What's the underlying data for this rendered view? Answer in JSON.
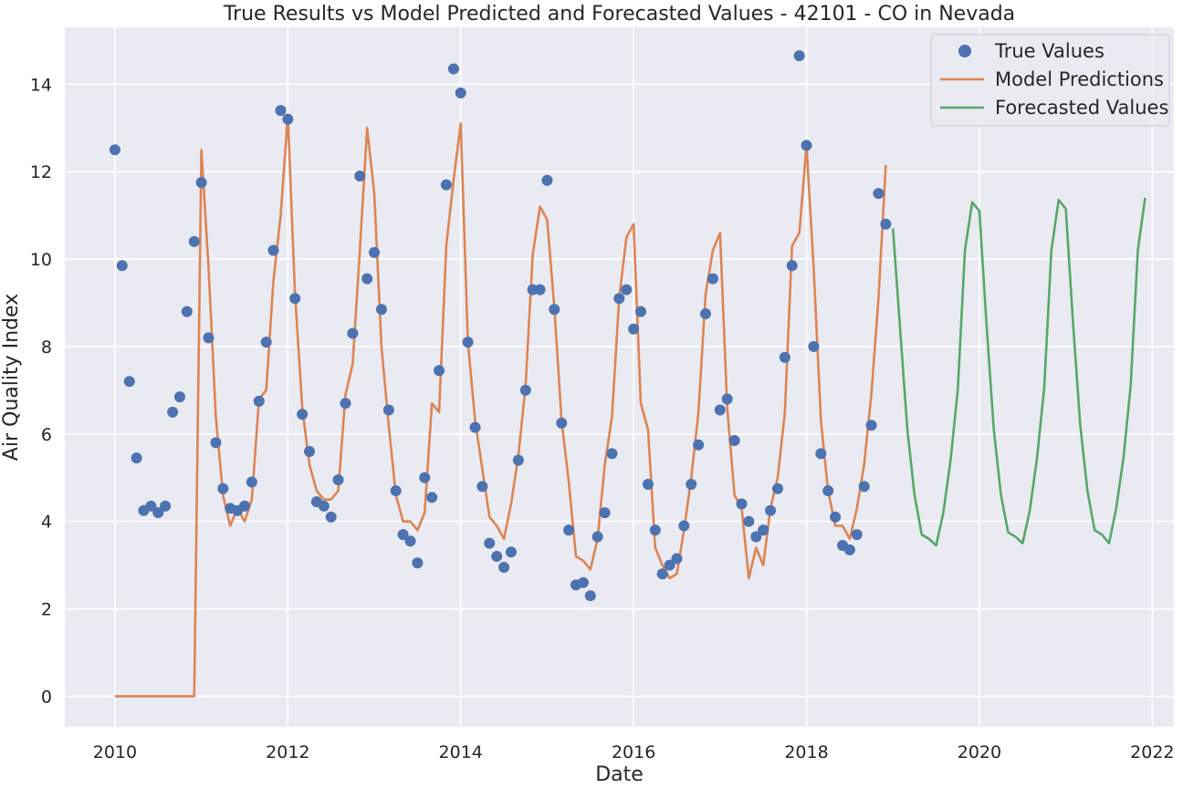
{
  "chart_data": {
    "type": "line",
    "title": "True Results vs Model Predicted and Forecasted Values - 42101 - CO in Nevada",
    "xlabel": "Date",
    "ylabel": "Air Quality Index",
    "xlim": [
      2009.42,
      2022.25
    ],
    "ylim": [
      -0.7,
      15.3
    ],
    "x_ticks": [
      2010,
      2012,
      2014,
      2016,
      2018,
      2020,
      2022
    ],
    "y_ticks": [
      0,
      2,
      4,
      6,
      8,
      10,
      12,
      14
    ],
    "grid": true,
    "legend_position": "top-right",
    "colors": {
      "background": "#eaeaf2",
      "grid": "#ffffff",
      "true_values": "#4c72b0",
      "model_predictions": "#dd8452",
      "forecasted_values": "#55a868"
    },
    "series": [
      {
        "name": "True Values",
        "kind": "scatter",
        "x": [
          2010.0,
          2010.083,
          2010.167,
          2010.25,
          2010.333,
          2010.417,
          2010.5,
          2010.583,
          2010.667,
          2010.75,
          2010.833,
          2010.917,
          2011.0,
          2011.083,
          2011.167,
          2011.25,
          2011.333,
          2011.417,
          2011.5,
          2011.583,
          2011.667,
          2011.75,
          2011.833,
          2011.917,
          2012.0,
          2012.083,
          2012.167,
          2012.25,
          2012.333,
          2012.417,
          2012.5,
          2012.583,
          2012.667,
          2012.75,
          2012.833,
          2012.917,
          2013.0,
          2013.083,
          2013.167,
          2013.25,
          2013.333,
          2013.417,
          2013.5,
          2013.583,
          2013.667,
          2013.75,
          2013.833,
          2013.917,
          2014.0,
          2014.083,
          2014.167,
          2014.25,
          2014.333,
          2014.417,
          2014.5,
          2014.583,
          2014.667,
          2014.75,
          2014.833,
          2014.917,
          2015.0,
          2015.083,
          2015.167,
          2015.25,
          2015.333,
          2015.417,
          2015.5,
          2015.583,
          2015.667,
          2015.75,
          2015.833,
          2015.917,
          2016.0,
          2016.083,
          2016.167,
          2016.25,
          2016.333,
          2016.417,
          2016.5,
          2016.583,
          2016.667,
          2016.75,
          2016.833,
          2016.917,
          2017.0,
          2017.083,
          2017.167,
          2017.25,
          2017.333,
          2017.417,
          2017.5,
          2017.583,
          2017.667,
          2017.75,
          2017.833,
          2017.917,
          2018.0,
          2018.083,
          2018.167,
          2018.25,
          2018.333,
          2018.417,
          2018.5,
          2018.583,
          2018.667,
          2018.75,
          2018.833,
          2018.917
        ],
        "y": [
          12.5,
          9.85,
          7.2,
          5.45,
          4.25,
          4.35,
          4.2,
          4.35,
          6.5,
          6.85,
          8.8,
          10.4,
          11.75,
          8.2,
          5.8,
          4.75,
          4.3,
          4.25,
          4.35,
          4.9,
          6.75,
          8.1,
          10.2,
          13.4,
          13.2,
          9.1,
          6.45,
          5.6,
          4.45,
          4.35,
          4.1,
          4.95,
          6.7,
          8.3,
          11.9,
          9.55,
          10.15,
          8.85,
          6.55,
          4.7,
          3.7,
          3.55,
          3.05,
          5.0,
          4.55,
          7.45,
          11.7,
          14.35,
          13.8,
          8.1,
          6.15,
          4.8,
          3.5,
          3.2,
          2.95,
          3.3,
          5.4,
          7.0,
          9.3,
          9.3,
          11.8,
          8.85,
          6.25,
          3.8,
          2.55,
          2.6,
          2.3,
          3.65,
          4.2,
          5.55,
          9.1,
          9.3,
          8.4,
          8.8,
          4.85,
          3.8,
          2.8,
          3.0,
          3.15,
          3.9,
          4.85,
          5.75,
          8.75,
          9.55,
          6.55,
          6.8,
          5.85,
          4.4,
          4.0,
          3.65,
          3.8,
          4.25,
          4.75,
          7.75,
          9.85,
          14.65,
          12.6,
          8.0,
          5.55,
          4.7,
          4.1,
          3.45,
          3.35,
          3.7,
          4.8,
          6.2,
          11.5,
          10.8
        ]
      },
      {
        "name": "Model Predictions",
        "kind": "line",
        "x": [
          2010.0,
          2010.083,
          2010.167,
          2010.25,
          2010.333,
          2010.417,
          2010.5,
          2010.583,
          2010.667,
          2010.75,
          2010.833,
          2010.917,
          2011.0,
          2011.083,
          2011.167,
          2011.25,
          2011.333,
          2011.417,
          2011.5,
          2011.583,
          2011.667,
          2011.75,
          2011.833,
          2011.917,
          2012.0,
          2012.083,
          2012.167,
          2012.25,
          2012.333,
          2012.417,
          2012.5,
          2012.583,
          2012.667,
          2012.75,
          2012.833,
          2012.917,
          2013.0,
          2013.083,
          2013.167,
          2013.25,
          2013.333,
          2013.417,
          2013.5,
          2013.583,
          2013.667,
          2013.75,
          2013.833,
          2013.917,
          2014.0,
          2014.083,
          2014.167,
          2014.25,
          2014.333,
          2014.417,
          2014.5,
          2014.583,
          2014.667,
          2014.75,
          2014.833,
          2014.917,
          2015.0,
          2015.083,
          2015.167,
          2015.25,
          2015.333,
          2015.417,
          2015.5,
          2015.583,
          2015.667,
          2015.75,
          2015.833,
          2015.917,
          2016.0,
          2016.083,
          2016.167,
          2016.25,
          2016.333,
          2016.417,
          2016.5,
          2016.583,
          2016.667,
          2016.75,
          2016.833,
          2016.917,
          2017.0,
          2017.083,
          2017.167,
          2017.25,
          2017.333,
          2017.417,
          2017.5,
          2017.583,
          2017.667,
          2017.75,
          2017.833,
          2017.917,
          2018.0,
          2018.083,
          2018.167,
          2018.25,
          2018.333,
          2018.417,
          2018.5,
          2018.583,
          2018.667,
          2018.75,
          2018.833,
          2018.917
        ],
        "y": [
          0,
          0,
          0,
          0,
          0,
          0,
          0,
          0,
          0,
          0,
          0,
          0,
          12.5,
          9.8,
          6.4,
          4.6,
          3.9,
          4.3,
          4.0,
          4.5,
          6.8,
          7.0,
          9.5,
          11.0,
          13.3,
          9.2,
          6.6,
          5.3,
          4.7,
          4.5,
          4.5,
          4.7,
          6.9,
          7.6,
          10.2,
          13.0,
          11.5,
          8.0,
          6.2,
          4.6,
          4.0,
          4.0,
          3.8,
          4.2,
          6.7,
          6.5,
          10.3,
          11.8,
          13.1,
          8.1,
          6.3,
          5.2,
          4.1,
          3.9,
          3.6,
          4.4,
          5.5,
          7.1,
          10.1,
          11.2,
          10.9,
          8.9,
          6.3,
          4.9,
          3.2,
          3.1,
          2.9,
          3.6,
          5.3,
          6.4,
          9.1,
          10.5,
          10.8,
          6.7,
          6.1,
          3.4,
          3.0,
          2.7,
          2.8,
          3.8,
          5.0,
          6.5,
          9.2,
          10.2,
          10.6,
          6.6,
          4.6,
          4.3,
          2.7,
          3.4,
          3.0,
          4.3,
          5.0,
          6.5,
          10.3,
          10.6,
          12.6,
          9.8,
          6.3,
          4.7,
          3.9,
          3.9,
          3.6,
          4.3,
          5.3,
          6.9,
          9.1,
          12.15
        ]
      },
      {
        "name": "Forecasted Values",
        "kind": "line",
        "x": [
          2019.0,
          2019.083,
          2019.167,
          2019.25,
          2019.333,
          2019.417,
          2019.5,
          2019.583,
          2019.667,
          2019.75,
          2019.833,
          2019.917,
          2020.0,
          2020.083,
          2020.167,
          2020.25,
          2020.333,
          2020.417,
          2020.5,
          2020.583,
          2020.667,
          2020.75,
          2020.833,
          2020.917,
          2021.0,
          2021.083,
          2021.167,
          2021.25,
          2021.333,
          2021.417,
          2021.5,
          2021.583,
          2021.667,
          2021.75,
          2021.833,
          2021.917
        ],
        "y": [
          10.7,
          8.4,
          6.1,
          4.6,
          3.7,
          3.6,
          3.45,
          4.2,
          5.4,
          7.0,
          10.2,
          11.3,
          11.1,
          8.5,
          6.1,
          4.6,
          3.75,
          3.65,
          3.5,
          4.25,
          5.45,
          7.05,
          10.2,
          11.35,
          11.15,
          8.55,
          6.2,
          4.7,
          3.8,
          3.7,
          3.5,
          4.3,
          5.45,
          7.1,
          10.2,
          11.4
        ]
      }
    ]
  }
}
